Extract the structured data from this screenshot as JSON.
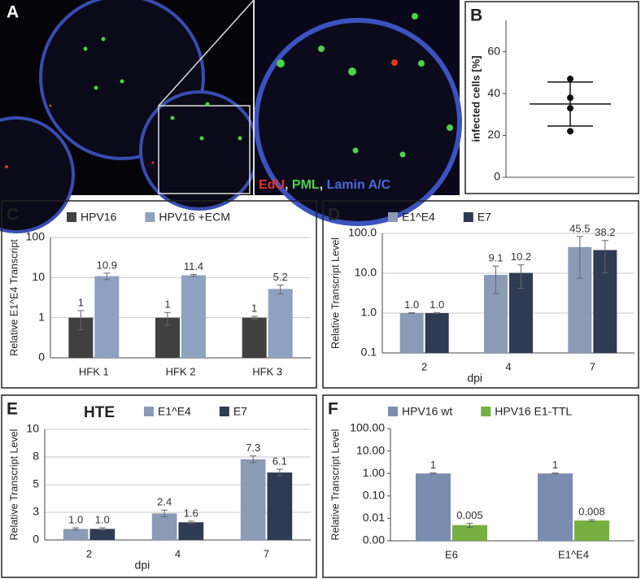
{
  "image_panel": {
    "label": "A",
    "separator": ",",
    "stains": [
      {
        "name": "EdU",
        "color": "#e2352b"
      },
      {
        "name": "PML",
        "color": "#4fd04a"
      },
      {
        "name": "Lamin A/C",
        "color": "#5068d8"
      }
    ]
  },
  "chart_data": [
    {
      "type": "dot",
      "label": "B",
      "y_label": "infected cells [%]",
      "values": [
        47,
        38,
        33,
        22
      ],
      "mean": 35,
      "error": 10.5,
      "color": "#111111",
      "ylim": [
        0,
        75
      ],
      "yticks": [
        0,
        20,
        40,
        60
      ]
    },
    {
      "type": "bar",
      "label": "C",
      "y_label": "Relative E1^E4 Transcript",
      "log": true,
      "grid": true,
      "categories": [
        "HFK 1",
        "HFK 2",
        "HFK 3"
      ],
      "series": [
        {
          "name": "HPV16",
          "color": "#404040",
          "values": [
            1,
            1,
            1
          ],
          "errors": [
            0.5,
            0.35,
            0.08
          ]
        },
        {
          "name": "HPV16 +ECM",
          "color": "#8fa1c0",
          "values": [
            10.9,
            11.4,
            5.2
          ],
          "errors": [
            2.0,
            0.6,
            1.3
          ]
        }
      ],
      "ylim": [
        0.1,
        100
      ],
      "yticks": [
        {
          "value": 0.1,
          "label": "0"
        },
        1,
        10,
        100
      ]
    },
    {
      "type": "bar",
      "label": "D",
      "y_label": "Relative Transcript Level",
      "x_label": "dpi",
      "log": true,
      "grid": true,
      "categories": [
        "2",
        "4",
        "7"
      ],
      "series": [
        {
          "name": "E1^E4",
          "color": "#8b9bb6",
          "values": [
            1,
            9.1,
            45.5
          ],
          "value_labels": [
            "1.0",
            "9.1",
            "45.5"
          ],
          "errors": [
            0.02,
            6,
            38
          ]
        },
        {
          "name": "E7",
          "color": "#2e3b53",
          "values": [
            1,
            10.2,
            38.2
          ],
          "value_labels": [
            "1.0",
            "10.2",
            "38.2"
          ],
          "errors": [
            0.02,
            6,
            28
          ]
        }
      ],
      "ylim": [
        0.1,
        100
      ],
      "yticks": [
        {
          "value": 0.1,
          "label": "0.1"
        },
        {
          "value": 1,
          "label": "1.0"
        },
        {
          "value": 10,
          "label": "10.0"
        },
        {
          "value": 100,
          "label": "100.0"
        }
      ]
    },
    {
      "type": "bar",
      "label": "E",
      "title": "HTE",
      "y_label": "Relative Transcript Level",
      "x_label": "dpi",
      "log": false,
      "grid": true,
      "categories": [
        "2",
        "4",
        "7"
      ],
      "series": [
        {
          "name": "E1^E4",
          "color": "#8b9bb6",
          "values": [
            1,
            2.4,
            7.3
          ],
          "value_labels": [
            "1.0",
            "2.4",
            "7.3"
          ],
          "errors": [
            0.1,
            0.3,
            0.3
          ]
        },
        {
          "name": "E7",
          "color": "#2e3b53",
          "values": [
            1,
            1.6,
            6.1
          ],
          "value_labels": [
            "1.0",
            "1.6",
            "6.1"
          ],
          "errors": [
            0.1,
            0.1,
            0.3
          ]
        }
      ],
      "ylim": [
        0,
        10
      ],
      "yticks": [
        0,
        {
          "value": 2.5,
          "label": "3"
        },
        5,
        {
          "value": 7.5,
          "label": "8"
        },
        10
      ]
    },
    {
      "type": "bar",
      "label": "F",
      "y_label": "Relative Transcript Level",
      "log": true,
      "grid": false,
      "categories": [
        "E6",
        "E1^E4"
      ],
      "series": [
        {
          "name": "HPV16 wt",
          "color": "#7a8db1",
          "values": [
            1,
            1
          ],
          "errors": [
            0.05,
            0.05
          ]
        },
        {
          "name": "HPV16 E1-TTL",
          "color": "#76b043",
          "values": [
            0.005,
            0.008
          ],
          "errors": [
            0.001,
            0.0008
          ]
        }
      ],
      "ylim": [
        0.001,
        100
      ],
      "yticks": [
        {
          "value": 0.001,
          "label": "0.00"
        },
        {
          "value": 0.01,
          "label": "0.01"
        },
        {
          "value": 0.1,
          "label": "0.10"
        },
        {
          "value": 1,
          "label": "1.00"
        },
        {
          "value": 10,
          "label": "10.00"
        },
        {
          "value": 100,
          "label": "100.00"
        }
      ]
    }
  ]
}
